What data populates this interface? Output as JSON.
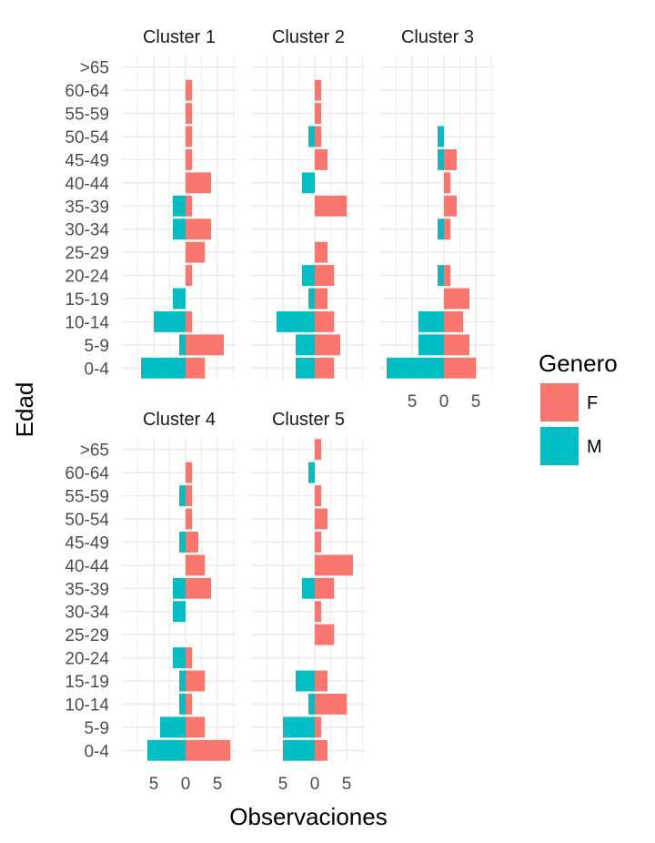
{
  "chart_data": {
    "type": "bar",
    "orientation": "horizontal",
    "layout": "faceted",
    "xlabel": "Observaciones",
    "ylabel": "Edad",
    "x_ticks": [
      {
        "value": -5,
        "label": "5"
      },
      {
        "value": 0,
        "label": "0"
      },
      {
        "value": 5,
        "label": "5"
      }
    ],
    "xlim": [
      -10,
      8
    ],
    "categories": [
      "0-4",
      "5-9",
      "10-14",
      "15-19",
      "20-24",
      "25-29",
      "30-34",
      "35-39",
      "40-44",
      "45-49",
      "50-54",
      "55-59",
      "60-64",
      ">65"
    ],
    "legend": {
      "title": "Genero",
      "position": "right",
      "entries": [
        {
          "key": "F",
          "label": "F",
          "color": "#F8766D"
        },
        {
          "key": "M",
          "label": "M",
          "color": "#00BFC4"
        }
      ]
    },
    "grid": true,
    "panels": [
      {
        "title": "Cluster 1",
        "series": [
          {
            "name": "F",
            "values": [
              3,
              6,
              1,
              0,
              1,
              3,
              4,
              1,
              4,
              1,
              1,
              1,
              1,
              0
            ]
          },
          {
            "name": "M",
            "values": [
              7,
              1,
              5,
              2,
              0,
              0,
              2,
              2,
              0,
              0,
              0,
              0,
              0,
              0
            ]
          }
        ]
      },
      {
        "title": "Cluster 2",
        "series": [
          {
            "name": "F",
            "values": [
              3,
              4,
              3,
              2,
              3,
              2,
              0,
              5,
              0,
              2,
              1,
              1,
              1,
              0
            ]
          },
          {
            "name": "M",
            "values": [
              3,
              3,
              6,
              1,
              2,
              0,
              0,
              0,
              2,
              0,
              1,
              0,
              0,
              0
            ]
          }
        ]
      },
      {
        "title": "Cluster 3",
        "series": [
          {
            "name": "F",
            "values": [
              5,
              4,
              3,
              4,
              1,
              0,
              1,
              2,
              1,
              2,
              0,
              0,
              0,
              0
            ]
          },
          {
            "name": "M",
            "values": [
              9,
              4,
              4,
              0,
              1,
              0,
              1,
              0,
              0,
              1,
              1,
              0,
              0,
              0
            ]
          }
        ]
      },
      {
        "title": "Cluster 4",
        "series": [
          {
            "name": "F",
            "values": [
              7,
              3,
              1,
              3,
              1,
              0,
              0,
              4,
              3,
              2,
              1,
              1,
              1,
              0
            ]
          },
          {
            "name": "M",
            "values": [
              6,
              4,
              1,
              1,
              2,
              0,
              2,
              2,
              0,
              1,
              0,
              1,
              0,
              0
            ]
          }
        ]
      },
      {
        "title": "Cluster 5",
        "series": [
          {
            "name": "F",
            "values": [
              2,
              1,
              5,
              2,
              0,
              3,
              1,
              3,
              6,
              1,
              2,
              1,
              0,
              1
            ]
          },
          {
            "name": "M",
            "values": [
              5,
              5,
              1,
              3,
              0,
              0,
              0,
              2,
              0,
              0,
              0,
              0,
              1,
              0
            ]
          }
        ]
      }
    ]
  }
}
